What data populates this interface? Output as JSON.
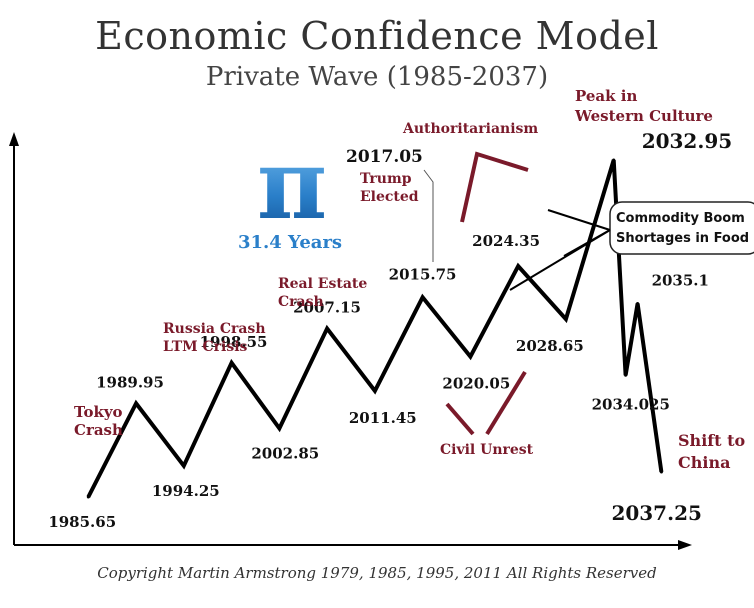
{
  "chart_data": {
    "type": "line",
    "title": "Economic Confidence Model",
    "subtitle": "Private Wave (1985-2037)",
    "xlabel": "",
    "ylabel": "",
    "grid": false,
    "legend": "none",
    "line_color": "#000000",
    "annotation_color": "#7a1a2a",
    "points": [
      {
        "x": 1985.65,
        "y": 0,
        "label": "1985.65"
      },
      {
        "x": 1989.95,
        "y": 3,
        "label": "1989.95"
      },
      {
        "x": 1994.25,
        "y": 1,
        "label": "1994.25"
      },
      {
        "x": 1998.55,
        "y": 4.3,
        "label": "1998.55"
      },
      {
        "x": 2002.85,
        "y": 2.2,
        "label": "2002.85"
      },
      {
        "x": 2007.15,
        "y": 5.4,
        "label": "2007.15"
      },
      {
        "x": 2011.45,
        "y": 3.4,
        "label": "2011.45"
      },
      {
        "x": 2015.75,
        "y": 6.4,
        "label": "2015.75"
      },
      {
        "x": 2020.05,
        "y": 4.5,
        "label": "2020.05"
      },
      {
        "x": 2024.35,
        "y": 7.4,
        "label": "2024.35"
      },
      {
        "x": 2028.65,
        "y": 5.7,
        "label": "2028.65"
      },
      {
        "x": 2032.95,
        "y": 10.8,
        "label": "2032.95"
      },
      {
        "x": 2034.025,
        "y": 3.9,
        "label": "2034.025"
      },
      {
        "x": 2035.1,
        "y": 6.2,
        "label": "2035.1"
      },
      {
        "x": 2037.25,
        "y": 0.8,
        "label": "2037.25"
      }
    ],
    "marker_labels": [
      {
        "text": "2017.05"
      }
    ],
    "annotations": [
      {
        "id": "tokyo",
        "lines": [
          "Tokyo",
          "Crash"
        ]
      },
      {
        "id": "russia",
        "lines": [
          "Russia Crash",
          "LTM Crisis"
        ]
      },
      {
        "id": "realestate",
        "lines": [
          "Real Estate",
          "Crash"
        ]
      },
      {
        "id": "trump",
        "lines": [
          "Trump",
          "Elected"
        ]
      },
      {
        "id": "authoritarianism",
        "lines": [
          "Authoritarianism"
        ]
      },
      {
        "id": "peak",
        "lines": [
          "Peak in",
          "Western Culture"
        ]
      },
      {
        "id": "civil",
        "lines": [
          "Civil Unrest"
        ]
      },
      {
        "id": "shift",
        "lines": [
          "Shift to",
          "China"
        ]
      }
    ],
    "callout": {
      "lines": [
        "Commodity Boom",
        "Shortages in Food"
      ]
    },
    "pi_badge": {
      "symbol": "π",
      "caption": "31.4 Years",
      "color": "#2a7fc9"
    }
  },
  "copyright": "Copyright Martin Armstrong 1979, 1985, 1995, 2011 All Rights Reserved"
}
